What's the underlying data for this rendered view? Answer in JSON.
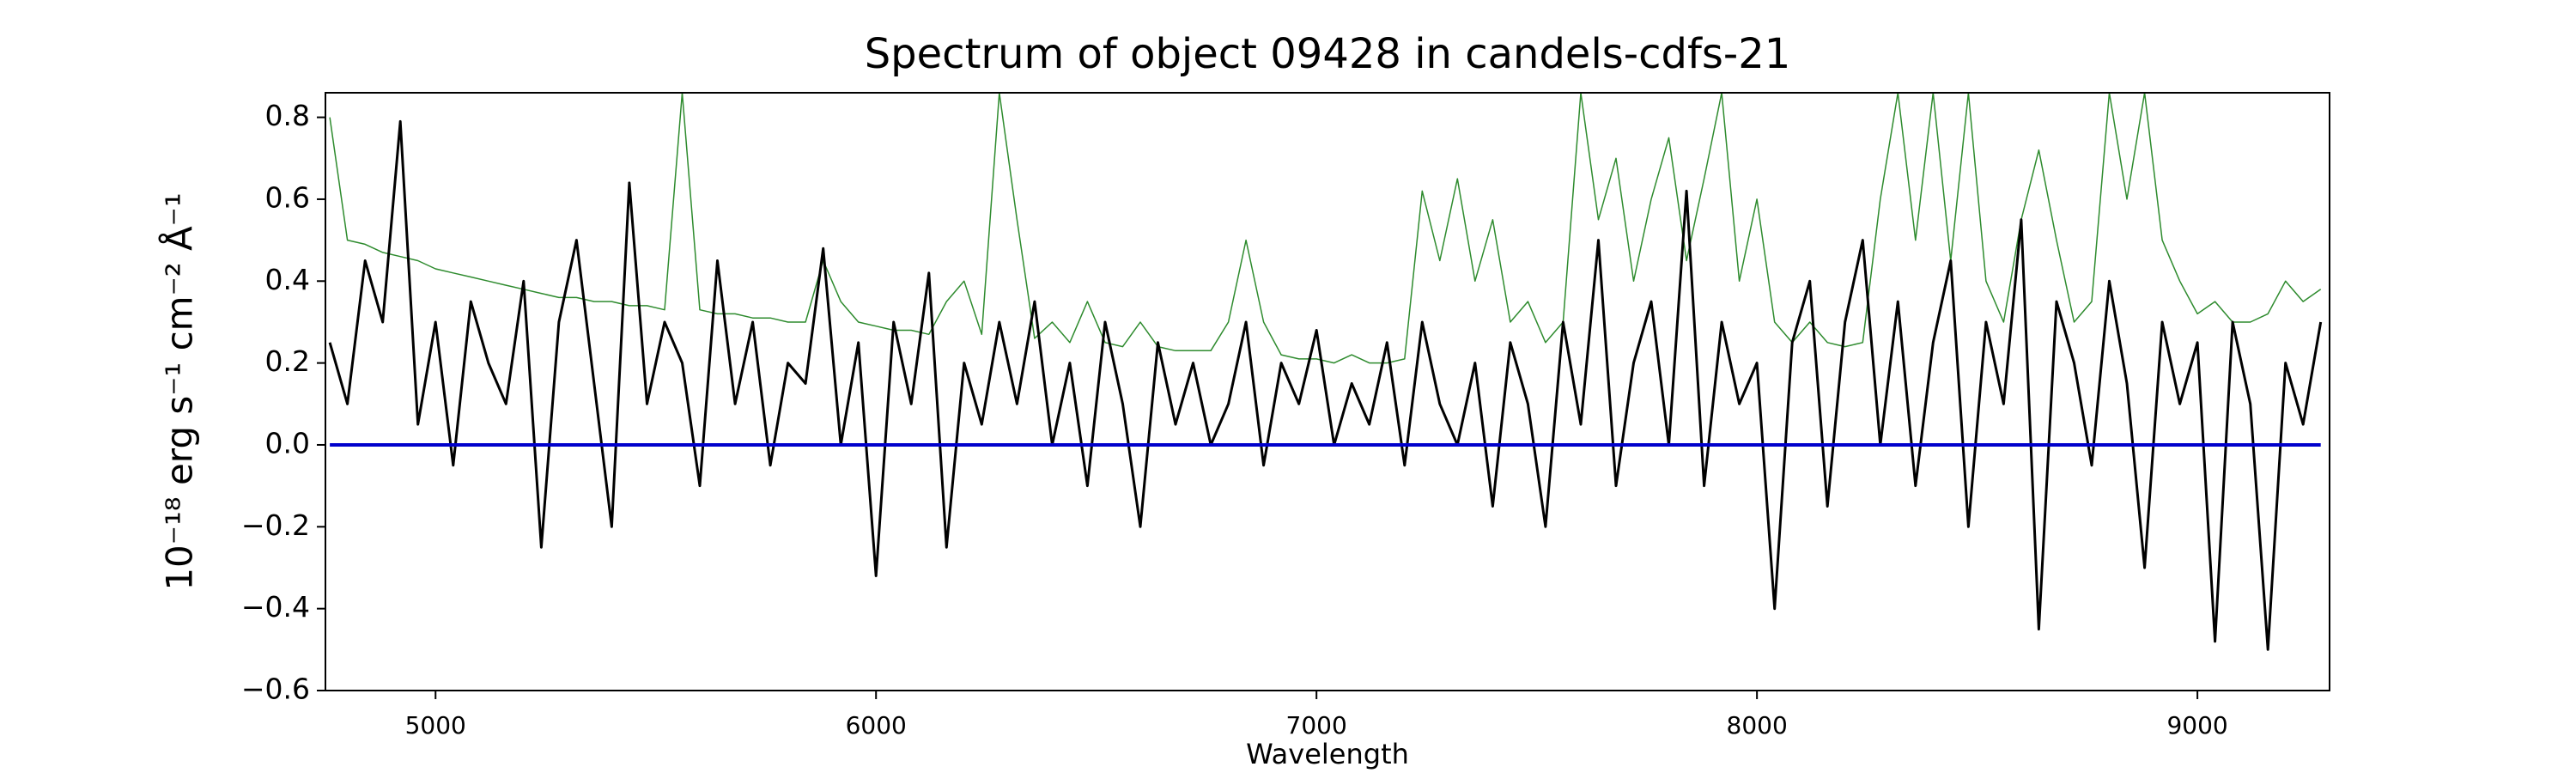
{
  "chart_data": {
    "type": "line",
    "title": "Spectrum of object 09428 in candels-cdfs-21",
    "xlabel": "Wavelength",
    "ylabel": "10⁻¹⁸ erg s⁻¹ cm⁻² Å⁻¹",
    "xlim": [
      4750,
      9300
    ],
    "ylim": [
      -0.6,
      0.86
    ],
    "xticks": [
      5000,
      6000,
      7000,
      8000,
      9000
    ],
    "yticks": [
      {
        "value": -0.6,
        "label": "−0.6"
      },
      {
        "value": -0.4,
        "label": "−0.4"
      },
      {
        "value": -0.2,
        "label": "−0.2"
      },
      {
        "value": 0,
        "label": "0.0"
      },
      {
        "value": 0.2,
        "label": "0.2"
      },
      {
        "value": 0.4,
        "label": "0.4"
      },
      {
        "value": 0.6,
        "label": "0.6"
      },
      {
        "value": 0.8,
        "label": "0.8"
      }
    ],
    "x": [
      4760,
      4800,
      4840,
      4880,
      4920,
      4960,
      5000,
      5040,
      5080,
      5120,
      5160,
      5200,
      5240,
      5280,
      5320,
      5360,
      5400,
      5440,
      5480,
      5520,
      5560,
      5600,
      5640,
      5680,
      5720,
      5760,
      5800,
      5840,
      5880,
      5920,
      5960,
      6000,
      6040,
      6080,
      6120,
      6160,
      6200,
      6240,
      6280,
      6320,
      6360,
      6400,
      6440,
      6480,
      6520,
      6560,
      6600,
      6640,
      6680,
      6720,
      6760,
      6800,
      6840,
      6880,
      6920,
      6960,
      7000,
      7040,
      7080,
      7120,
      7160,
      7200,
      7240,
      7280,
      7320,
      7360,
      7400,
      7440,
      7480,
      7520,
      7560,
      7600,
      7640,
      7680,
      7720,
      7760,
      7800,
      7840,
      7880,
      7920,
      7960,
      8000,
      8040,
      8080,
      8120,
      8160,
      8200,
      8240,
      8280,
      8320,
      8360,
      8400,
      8440,
      8480,
      8520,
      8560,
      8600,
      8640,
      8680,
      8720,
      8760,
      8800,
      8840,
      8880,
      8920,
      8960,
      9000,
      9040,
      9080,
      9120,
      9160,
      9200,
      9240,
      9280
    ],
    "series": [
      {
        "color": "#2e8b2e",
        "width": 1.5,
        "values": [
          0.8,
          0.5,
          0.49,
          0.47,
          0.46,
          0.45,
          0.43,
          0.42,
          0.41,
          0.4,
          0.39,
          0.38,
          0.37,
          0.36,
          0.36,
          0.35,
          0.35,
          0.34,
          0.34,
          0.33,
          0.86,
          0.33,
          0.32,
          0.32,
          0.31,
          0.31,
          0.3,
          0.3,
          0.45,
          0.35,
          0.3,
          0.29,
          0.28,
          0.28,
          0.27,
          0.35,
          0.4,
          0.27,
          0.86,
          0.55,
          0.26,
          0.3,
          0.25,
          0.35,
          0.25,
          0.24,
          0.3,
          0.24,
          0.23,
          0.23,
          0.23,
          0.3,
          0.5,
          0.3,
          0.22,
          0.21,
          0.21,
          0.2,
          0.22,
          0.2,
          0.2,
          0.21,
          0.62,
          0.45,
          0.65,
          0.4,
          0.55,
          0.3,
          0.35,
          0.25,
          0.3,
          0.86,
          0.55,
          0.7,
          0.4,
          0.6,
          0.75,
          0.45,
          0.65,
          0.86,
          0.4,
          0.6,
          0.3,
          0.25,
          0.3,
          0.25,
          0.24,
          0.25,
          0.6,
          0.86,
          0.5,
          0.86,
          0.45,
          0.86,
          0.4,
          0.3,
          0.55,
          0.72,
          0.5,
          0.3,
          0.35,
          0.86,
          0.6,
          0.86,
          0.5,
          0.4,
          0.32,
          0.35,
          0.3,
          0.3,
          0.32,
          0.4,
          0.35,
          0.38
        ]
      },
      {
        "color": "#000000",
        "width": 3,
        "values": [
          0.25,
          0.1,
          0.45,
          0.3,
          0.79,
          0.05,
          0.3,
          -0.05,
          0.35,
          0.2,
          0.1,
          0.4,
          -0.25,
          0.3,
          0.5,
          0.15,
          -0.2,
          0.64,
          0.1,
          0.3,
          0.2,
          -0.1,
          0.45,
          0.1,
          0.3,
          -0.05,
          0.2,
          0.15,
          0.48,
          0.0,
          0.25,
          -0.32,
          0.3,
          0.1,
          0.42,
          -0.25,
          0.2,
          0.05,
          0.3,
          0.1,
          0.35,
          0.0,
          0.2,
          -0.1,
          0.3,
          0.1,
          -0.2,
          0.25,
          0.05,
          0.2,
          0.0,
          0.1,
          0.3,
          -0.05,
          0.2,
          0.1,
          0.28,
          0.0,
          0.15,
          0.05,
          0.25,
          -0.05,
          0.3,
          0.1,
          0.0,
          0.2,
          -0.15,
          0.25,
          0.1,
          -0.2,
          0.3,
          0.05,
          0.5,
          -0.1,
          0.2,
          0.35,
          0.0,
          0.62,
          -0.1,
          0.3,
          0.1,
          0.2,
          -0.4,
          0.25,
          0.4,
          -0.15,
          0.3,
          0.5,
          0.0,
          0.35,
          -0.1,
          0.25,
          0.45,
          -0.2,
          0.3,
          0.1,
          0.55,
          -0.45,
          0.35,
          0.2,
          -0.05,
          0.4,
          0.15,
          -0.3,
          0.3,
          0.1,
          0.25,
          -0.48,
          0.3,
          0.1,
          -0.5,
          0.2,
          0.05,
          0.3
        ]
      },
      {
        "color": "#0000cc",
        "width": 4,
        "values": [
          0,
          0,
          0,
          0,
          0,
          0,
          0,
          0,
          0,
          0,
          0,
          0,
          0,
          0,
          0,
          0,
          0,
          0,
          0,
          0,
          0,
          0,
          0,
          0,
          0,
          0,
          0,
          0,
          0,
          0,
          0,
          0,
          0,
          0,
          0,
          0,
          0,
          0,
          0,
          0,
          0,
          0,
          0,
          0,
          0,
          0,
          0,
          0,
          0,
          0,
          0,
          0,
          0,
          0,
          0,
          0,
          0,
          0,
          0,
          0,
          0,
          0,
          0,
          0,
          0,
          0,
          0,
          0,
          0,
          0,
          0,
          0,
          0,
          0,
          0,
          0,
          0,
          0,
          0,
          0,
          0,
          0,
          0,
          0,
          0,
          0,
          0,
          0,
          0,
          0,
          0,
          0,
          0,
          0,
          0,
          0,
          0,
          0,
          0,
          0,
          0,
          0,
          0,
          0,
          0,
          0,
          0,
          0,
          0,
          0,
          0,
          0,
          0,
          0
        ]
      }
    ]
  }
}
